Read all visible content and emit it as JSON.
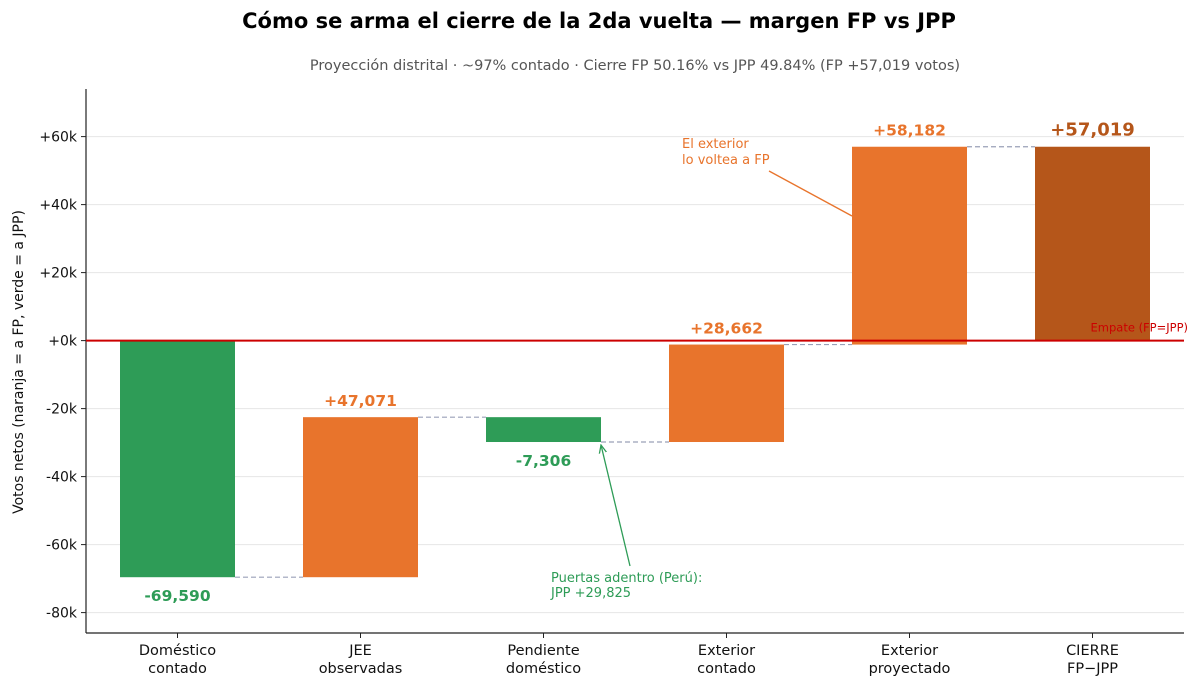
{
  "chart_data": {
    "type": "bar",
    "title": "Cómo se arma el cierre de la 2da vuelta — margen FP vs JPP",
    "subtitle": "Proyección distrital · ~97% contado · Cierre FP 50.16% vs JPP 49.84%  (FP +57,019 votos)",
    "ylabel": "Votos netos (naranja = a FP, verde = a JPP)",
    "ylim": [
      -86000,
      74000
    ],
    "yticks": [
      -80000,
      -60000,
      -40000,
      -20000,
      0,
      20000,
      40000,
      60000
    ],
    "ytick_labels": [
      "-80k",
      "-60k",
      "-40k",
      "-20k",
      "+0k",
      "+20k",
      "+40k",
      "+60k"
    ],
    "grid": "horizontal",
    "categories": [
      [
        "Doméstico",
        "contado"
      ],
      [
        "JEE",
        "observadas"
      ],
      [
        "Pendiente",
        "doméstico"
      ],
      [
        "Exterior",
        "contado"
      ],
      [
        "Exterior",
        "proyectado"
      ],
      [
        "CIERRE",
        "FP−JPP"
      ]
    ],
    "steps": [
      {
        "start": 0,
        "end": -69590,
        "label": "-69,590",
        "kind": "jpp"
      },
      {
        "start": -69590,
        "end": -22519,
        "label": "+47,071",
        "kind": "fp"
      },
      {
        "start": -22519,
        "end": -29825,
        "label": "-7,306",
        "kind": "jpp"
      },
      {
        "start": -29825,
        "end": -1163,
        "label": "+28,662",
        "kind": "fp"
      },
      {
        "start": -1163,
        "end": 57019,
        "label": "+58,182",
        "kind": "fp"
      },
      {
        "start": 0,
        "end": 57019,
        "label": "+57,019",
        "kind": "total"
      }
    ],
    "reference_line": {
      "value": 0,
      "label": "Empate (FP=JPP)",
      "color": "#cc0000"
    },
    "annotations": [
      {
        "lines": [
          "El exterior",
          "lo voltea a FP"
        ],
        "color": "#e8742c",
        "target_bar": 4
      },
      {
        "lines": [
          "Puertas adentro (Perú):",
          "JPP +29,825"
        ],
        "color": "#2e9c57",
        "target_bar": 2
      }
    ]
  },
  "colors": {
    "fp": "#e8742c",
    "jpp": "#2e9c57",
    "total": "#b5561a",
    "title": "#b5561a",
    "connector": "#9aa0b8",
    "grid": "#e6e6e6"
  }
}
